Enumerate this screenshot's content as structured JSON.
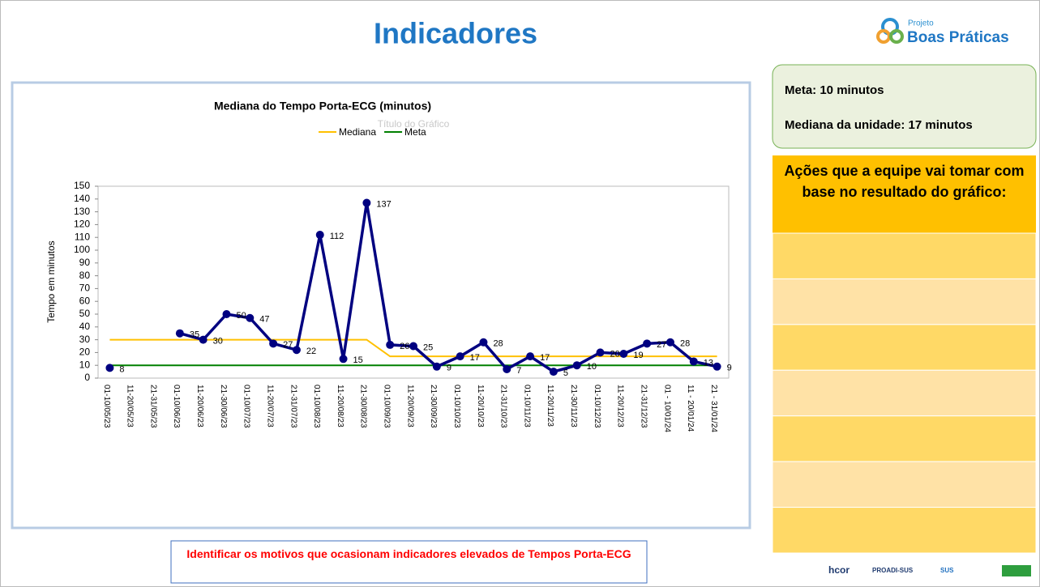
{
  "header": {
    "title": "Indicadores",
    "logo_small": "Projeto",
    "logo_main": "Boas Práticas"
  },
  "chart_data": {
    "type": "line",
    "title": "Mediana do Tempo Porta-ECG (minutos)",
    "placeholder": "Título do Gráfico",
    "y_label": "Tempo em minutos",
    "categories": [
      "01-10/05/23",
      "11-20/05/23",
      "21-31/05/23",
      "01-10/06/23",
      "11-20/06/23",
      "21-30/06/23",
      "01-10/07/23",
      "11-20/07/23",
      "21-31/07/23",
      "01-10/08/23",
      "11-20/08/23",
      "21-30/08/23",
      "01-10/09/23",
      "11-20/09/23",
      "21-30/09/23",
      "01-10/10/23",
      "11-20/10/23",
      "21-31/10/23",
      "01-10/11/23",
      "11-20/11/23",
      "21-30/11/23",
      "01-10/12/23",
      "11-20/12/23",
      "21-31/12/23",
      "01 - 10/01/24",
      "11 - 20/01/24",
      "21 - 31/01/24"
    ],
    "series": [
      {
        "color": "#000080",
        "markers": true,
        "data_labels": true,
        "values": [
          8,
          null,
          null,
          35,
          30,
          50,
          47,
          27,
          22,
          112,
          15,
          137,
          26,
          25,
          9,
          17,
          28,
          7,
          17,
          5,
          10,
          20,
          19,
          27,
          28,
          13,
          9
        ]
      },
      {
        "name": "Mediana",
        "color": "#ffc000",
        "values": [
          30,
          30,
          30,
          30,
          30,
          30,
          30,
          30,
          30,
          30,
          30,
          30,
          17,
          17,
          17,
          17,
          17,
          17,
          17,
          17,
          17,
          17,
          17,
          17,
          17,
          17,
          17
        ]
      },
      {
        "name": "Meta",
        "color": "#008000",
        "values": [
          10,
          10,
          10,
          10,
          10,
          10,
          10,
          10,
          10,
          10,
          10,
          10,
          10,
          10,
          10,
          10,
          10,
          10,
          10,
          10,
          10,
          10,
          10,
          10,
          10,
          10,
          10
        ]
      }
    ],
    "ylim": [
      0,
      150
    ],
    "yticks": [
      0,
      10,
      20,
      30,
      40,
      50,
      60,
      70,
      80,
      90,
      100,
      110,
      120,
      130,
      140,
      150
    ],
    "legend": "top"
  },
  "summary": {
    "goal": "Meta: 10 minutos",
    "median": "Mediana da unidade: 17 minutos"
  },
  "actions": {
    "title": "Ações que a equipe vai tomar com base no resultado do gráfico:",
    "rows": 7
  },
  "note": "Identificar os motivos que ocasionam indicadores elevados de Tempos Porta-ECG",
  "footer": {
    "logos": [
      "hcor",
      "PROADI-SUS",
      "SUS"
    ]
  }
}
